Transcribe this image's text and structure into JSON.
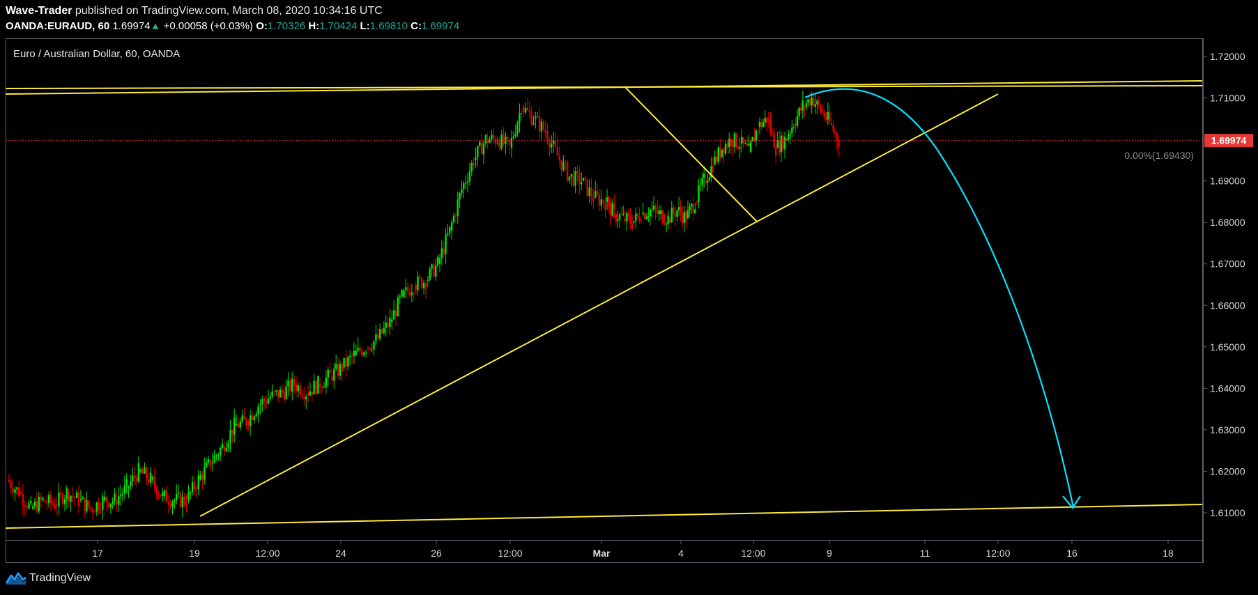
{
  "header": {
    "author": "Wave-Trader",
    "published_text": "published on TradingView.com, March 08, 2020 10:34:16 UTC",
    "symbol": "OANDA:EURAUD, 60",
    "last": "1.69974",
    "change_arrow": "▲",
    "change": "+0.00058 (+0.03%)",
    "o_label": "O:",
    "o_value": "1.70326",
    "h_label": "H:",
    "h_value": "1.70424",
    "l_label": "L:",
    "l_value": "1.69810",
    "c_label": "C:",
    "c_value": "1.69974"
  },
  "footer": {
    "brand": "TradingView",
    "logo_icon": "tradingview-logo-icon"
  },
  "chart_data": {
    "type": "line",
    "title": "Euro / Australian Dollar, 60, OANDA",
    "x_ticks": [
      "17",
      "19",
      "12:00",
      "24",
      "26",
      "12:00",
      "Mar",
      "4",
      "12:00",
      "9",
      "11",
      "12:00",
      "16",
      "18"
    ],
    "y_ticks": [
      "1.72000",
      "1.71000",
      "1.70000",
      "1.69000",
      "1.68000",
      "1.67000",
      "1.66000",
      "1.65000",
      "1.64000",
      "1.63000",
      "1.62000",
      "1.61000"
    ],
    "ylim": [
      1.6055,
      1.7255
    ],
    "current_price": 1.69974,
    "current_price_label": "1.69974",
    "fib_label": "0.00%(1.69430)",
    "series": [
      {
        "x": [
          0,
          2,
          4,
          6,
          8,
          10,
          12,
          14,
          16,
          18,
          20,
          22,
          24,
          26,
          28,
          30,
          32,
          34,
          36,
          38,
          40,
          42,
          44,
          46,
          48,
          50,
          52,
          54,
          56,
          58,
          60,
          62,
          64,
          66,
          68,
          70,
          72,
          74,
          76,
          78,
          80,
          82,
          84,
          86,
          88,
          90,
          92,
          94,
          96,
          98,
          100,
          101.5
        ],
        "close": [
          1.618,
          1.615,
          1.611,
          1.613,
          1.612,
          1.615,
          1.613,
          1.611,
          1.613,
          1.613,
          1.616,
          1.62,
          1.618,
          1.614,
          1.613,
          1.613,
          1.618,
          1.622,
          1.626,
          1.631,
          1.632,
          1.636,
          1.638,
          1.639,
          1.641,
          1.639,
          1.641,
          1.643,
          1.645,
          1.648,
          1.65,
          1.652,
          1.656,
          1.662,
          1.665,
          1.666,
          1.67,
          1.678,
          1.688,
          1.695,
          1.7,
          1.7,
          1.698,
          1.708,
          1.705,
          1.702,
          1.696,
          1.691,
          1.69,
          1.686,
          1.685,
          1.682
        ]
      },
      {
        "x": [
          100,
          101.5,
          103,
          104.5,
          106,
          107.5,
          109,
          110.5,
          112,
          113.5,
          115,
          116.5,
          118,
          119.5,
          121,
          122.5,
          124,
          125.5,
          127,
          128.5,
          130,
          131.5,
          133,
          134.5,
          136,
          137.5,
          139
        ],
        "close": [
          1.685,
          1.682,
          1.681,
          1.68,
          1.682,
          1.683,
          1.682,
          1.681,
          1.683,
          1.681,
          1.685,
          1.69,
          1.694,
          1.698,
          1.7,
          1.699,
          1.697,
          1.703,
          1.705,
          1.698,
          1.7,
          1.704,
          1.708,
          1.71,
          1.707,
          1.704,
          1.6997
        ]
      }
    ]
  }
}
